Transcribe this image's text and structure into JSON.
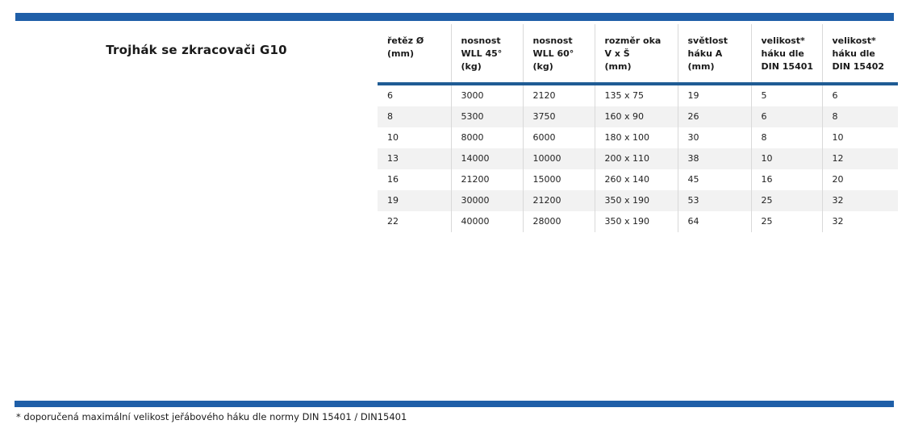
{
  "page": {
    "title": "Trojhák se zkracovači G10",
    "footnote": "* doporučená maximální velikost jeřábového háku dle normy DIN 15401 / DIN15401"
  },
  "colors": {
    "accent_bar": "#1f5fa8",
    "header_rule": "#1f5c94",
    "row_alt": "#f2f2f2",
    "grid_line": "#d9d9d9"
  },
  "table": {
    "columns": [
      "řetěz Ø\n(mm)",
      "nosnost\nWLL 45°\n(kg)",
      "nosnost\nWLL 60°\n(kg)",
      "rozměr oka\nV x Š\n(mm)",
      "světlost\nháku A\n(mm)",
      "velikost*\nháku dle\nDIN 15401",
      "velikost*\nháku dle\nDIN 15402"
    ],
    "rows": [
      [
        "6",
        "3000",
        "2120",
        "135 x 75",
        "19",
        "5",
        "6"
      ],
      [
        "8",
        "5300",
        "3750",
        "160 x 90",
        "26",
        "6",
        "8"
      ],
      [
        "10",
        "8000",
        "6000",
        "180 x 100",
        "30",
        "8",
        "10"
      ],
      [
        "13",
        "14000",
        "10000",
        "200 x 110",
        "38",
        "10",
        "12"
      ],
      [
        "16",
        "21200",
        "15000",
        "260 x 140",
        "45",
        "16",
        "20"
      ],
      [
        "19",
        "30000",
        "21200",
        "350 x 190",
        "53",
        "25",
        "32"
      ],
      [
        "22",
        "40000",
        "28000",
        "350 x 190",
        "64",
        "25",
        "32"
      ]
    ]
  }
}
